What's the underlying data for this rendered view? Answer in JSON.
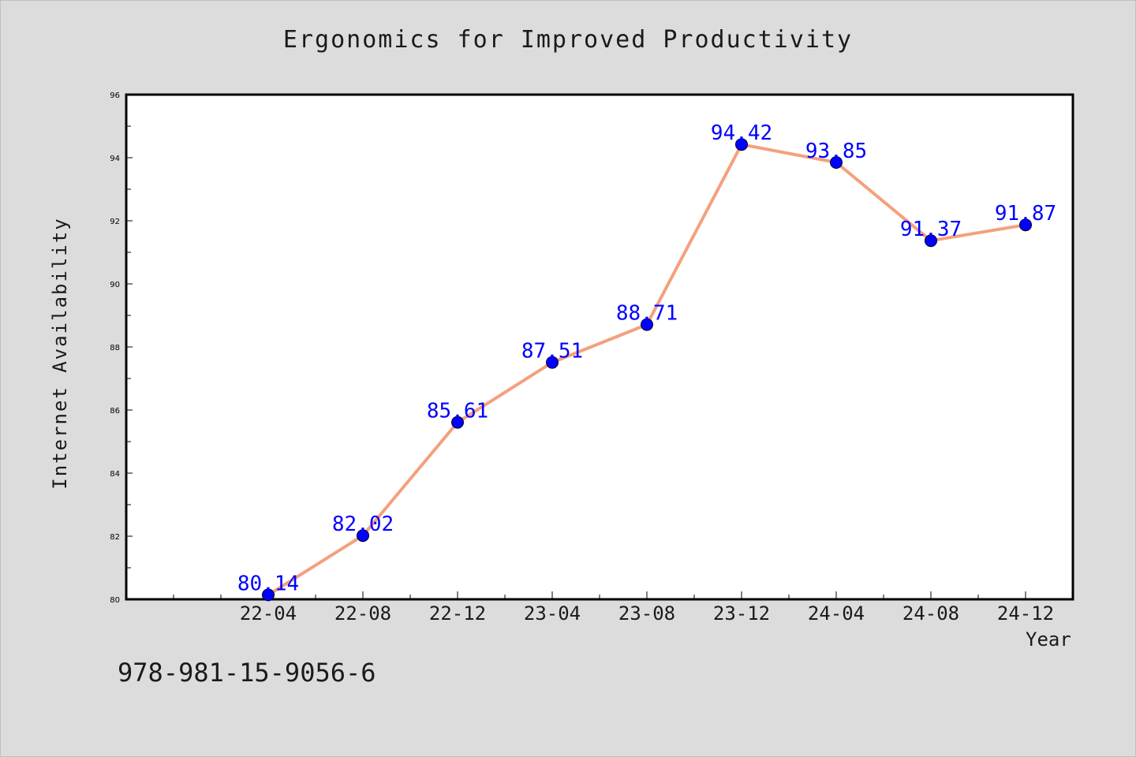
{
  "chart_data": {
    "type": "line",
    "title": "Ergonomics for Improved Productivity",
    "xlabel": "Year",
    "ylabel": "Internet Availability",
    "categories": [
      "22-04",
      "22-08",
      "22-12",
      "23-04",
      "23-08",
      "23-12",
      "24-04",
      "24-08",
      "24-12"
    ],
    "values": [
      80.14,
      82.02,
      85.61,
      87.51,
      88.71,
      94.42,
      93.85,
      91.37,
      91.87
    ],
    "data_labels": [
      "80.14",
      "82.02",
      "85.61",
      "87.51",
      "88.71",
      "94.42",
      "93.85",
      "91.37",
      "91.87"
    ],
    "ylim": [
      80,
      96
    ],
    "yticks": [
      "80",
      "82",
      "84",
      "86",
      "88",
      "90",
      "92",
      "94",
      "96"
    ],
    "grid": false,
    "line_color": "#f4a07e",
    "marker_color": "#0000ff",
    "label_color": "#0000ff"
  },
  "footer": {
    "code": "978-981-15-9056-6"
  }
}
